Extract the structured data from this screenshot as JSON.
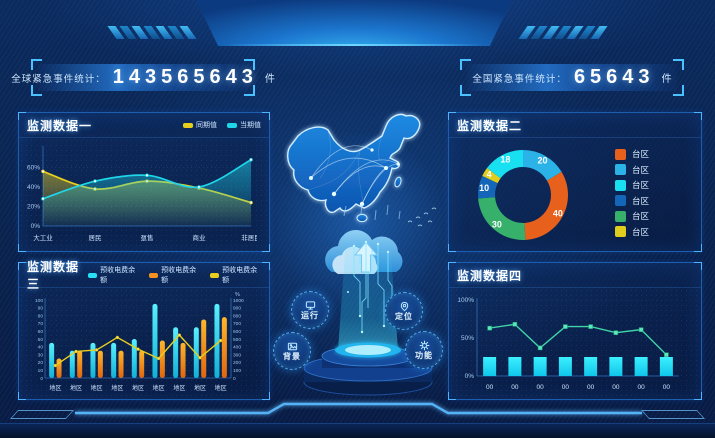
{
  "header": {
    "left_counter": {
      "label": "全球紧急事件统计：",
      "value": "143565643",
      "unit": "件"
    },
    "right_counter": {
      "label": "全国紧急事件统计：",
      "value": "65643",
      "unit": "件"
    }
  },
  "panels": {
    "p1_title": "监测数据一",
    "p2_title": "监测数据二",
    "p3_title": "监测数据三",
    "p4_title": "监测数据四"
  },
  "center": {
    "buttons": [
      {
        "label": "运行",
        "icon": "monitor-icon"
      },
      {
        "label": "定位",
        "icon": "location-icon"
      },
      {
        "label": "背景",
        "icon": "image-icon"
      },
      {
        "label": "功能",
        "icon": "gear-icon"
      }
    ]
  },
  "colors": {
    "accent_cyan": "#29dff5",
    "accent_yellow": "#e8cf1d",
    "accent_orange": "#f5911e",
    "accent_green": "#3fd4a8",
    "panel_border": "#1c5dae"
  },
  "chart_data": [
    {
      "type": "area",
      "panel": "监测数据一",
      "categories": [
        "大工业",
        "居民",
        "趸售",
        "商业",
        "非居民"
      ],
      "series": [
        {
          "name": "同期值",
          "color": "#e8cf1d",
          "values": [
            56,
            38,
            46,
            39,
            24
          ]
        },
        {
          "name": "当期值",
          "color": "#1fd6e8",
          "values": [
            28,
            46,
            52,
            40,
            68
          ]
        }
      ],
      "yticks": [
        0,
        20,
        40,
        60
      ],
      "ytick_suffix": "%",
      "ylim": [
        0,
        80
      ],
      "grid": true,
      "legend_position": "top-right"
    },
    {
      "type": "donut",
      "panel": "监测数据二",
      "slices": [
        {
          "label": "台区",
          "value": 20,
          "color": "#2bb3e8"
        },
        {
          "label": "台区",
          "value": 40,
          "color": "#e8611c"
        },
        {
          "label": "台区",
          "value": 30,
          "color": "#36b06b"
        },
        {
          "label": "台区",
          "value": 10,
          "color": "#1467b8"
        },
        {
          "label": "台区",
          "value": 4,
          "color": "#e0ce1e"
        },
        {
          "label": "台区",
          "value": 18,
          "color": "#19e0f0"
        }
      ],
      "legend": [
        {
          "label": "台区",
          "color": "#e8611c"
        },
        {
          "label": "台区",
          "color": "#2bb3e8"
        },
        {
          "label": "台区",
          "color": "#19e0f0"
        },
        {
          "label": "台区",
          "color": "#1467b8"
        },
        {
          "label": "台区",
          "color": "#36b06b"
        },
        {
          "label": "台区",
          "color": "#e0ce1e"
        }
      ],
      "start_angle_deg": -90,
      "direction": "clockwise",
      "legend_position": "right"
    },
    {
      "type": "bar-line",
      "panel": "监测数据三",
      "categories": [
        "地区",
        "地区",
        "地区",
        "地区",
        "地区",
        "地区",
        "地区",
        "地区",
        "地区"
      ],
      "bar_series": [
        {
          "name": "预收电费余额",
          "color": "#29dff5",
          "axis": "left",
          "values": [
            45,
            35,
            45,
            45,
            50,
            95,
            65,
            65,
            95
          ]
        },
        {
          "name": "预收电费余额",
          "color": "#f5911e",
          "axis": "left",
          "values": [
            25,
            35,
            35,
            35,
            35,
            48,
            45,
            75,
            78
          ]
        }
      ],
      "line_series": {
        "name": "预收电费余额",
        "color": "#e8cf1d",
        "axis": "right",
        "values": [
          160,
          340,
          360,
          520,
          370,
          250,
          550,
          260,
          480
        ]
      },
      "left_axis": {
        "min": 0,
        "max": 100,
        "step": 10
      },
      "right_axis": {
        "min": 0,
        "max": 1000,
        "step": 100,
        "unit": "%"
      }
    },
    {
      "type": "line-bar",
      "panel": "监测数据四",
      "categories": [
        "00",
        "00",
        "00",
        "00",
        "00",
        "00",
        "00",
        "00"
      ],
      "bar_series": {
        "color": "#19e0f5",
        "values": [
          25,
          25,
          25,
          25,
          25,
          25,
          25,
          25
        ]
      },
      "line_series": {
        "color": "#3fd4a8",
        "marker": "square",
        "values": [
          63,
          68,
          37,
          65,
          65,
          57,
          61,
          28
        ]
      },
      "yticks": [
        "0%",
        "50%",
        "100%"
      ],
      "ylim": [
        0,
        100
      ]
    }
  ]
}
